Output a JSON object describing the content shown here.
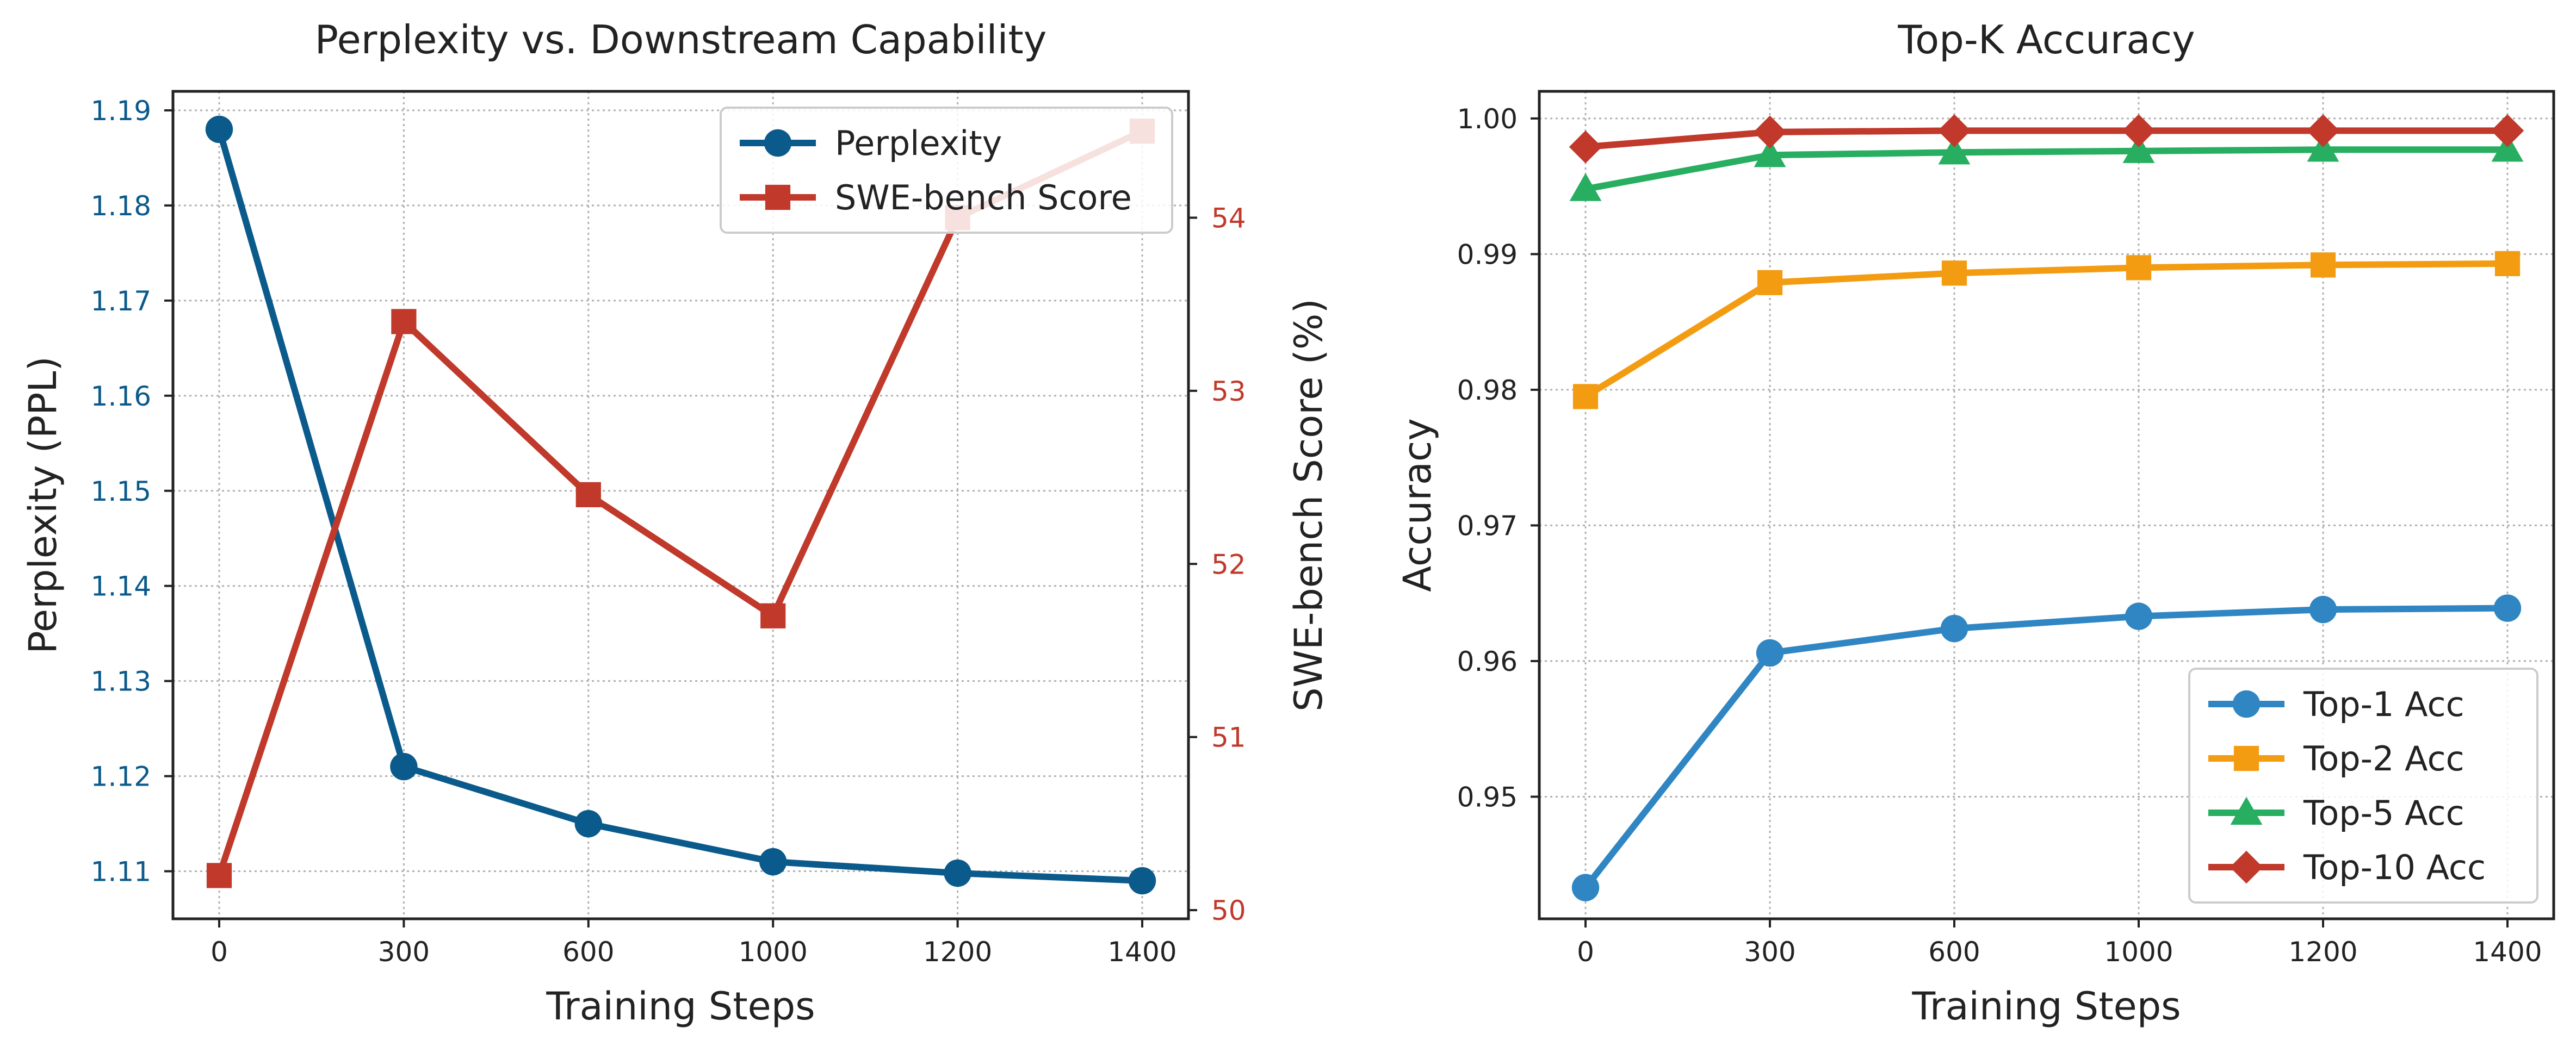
{
  "chart_data": [
    {
      "type": "line",
      "title": "Perplexity vs. Downstream Capability",
      "xlabel": "Training Steps",
      "ylabel": "Perplexity (PPL)",
      "y2label": "SWE-bench Score (%)",
      "categories": [
        "0",
        "300",
        "600",
        "1000",
        "1200",
        "1400"
      ],
      "ylim": [
        1.105,
        1.192
      ],
      "yticks": [
        "1.11",
        "1.12",
        "1.13",
        "1.14",
        "1.15",
        "1.16",
        "1.17",
        "1.18",
        "1.19"
      ],
      "y2lim": [
        49.95,
        54.73
      ],
      "y2ticks": [
        "50",
        "51",
        "52",
        "53",
        "54"
      ],
      "grid": true,
      "legend_position": "top-right",
      "series": [
        {
          "name": "Perplexity",
          "axis": "left",
          "marker": "circle",
          "color": "#0b5a8c",
          "values": [
            1.188,
            1.121,
            1.115,
            1.111,
            1.1098,
            1.109
          ]
        },
        {
          "name": "SWE-bench Score",
          "axis": "right",
          "marker": "square",
          "color": "#c0392b",
          "values": [
            50.2,
            53.4,
            52.4,
            51.7,
            54.0,
            54.5
          ]
        }
      ]
    },
    {
      "type": "line",
      "title": "Top-K Accuracy",
      "xlabel": "Training Steps",
      "ylabel": "Accuracy",
      "categories": [
        "0",
        "300",
        "600",
        "1000",
        "1200",
        "1400"
      ],
      "ylim": [
        0.941,
        1.002
      ],
      "yticks": [
        "0.95",
        "0.96",
        "0.97",
        "0.98",
        "0.99",
        "1.00"
      ],
      "grid": true,
      "legend_position": "bottom-right",
      "series": [
        {
          "name": "Top-1 Acc",
          "marker": "circle",
          "color": "#2f86c2",
          "values": [
            0.9433,
            0.9606,
            0.9624,
            0.9633,
            0.9638,
            0.9639
          ]
        },
        {
          "name": "Top-2 Acc",
          "marker": "square",
          "color": "#f39c12",
          "values": [
            0.9795,
            0.9879,
            0.9886,
            0.989,
            0.9892,
            0.9893
          ]
        },
        {
          "name": "Top-5 Acc",
          "marker": "triangle",
          "color": "#27ae60",
          "values": [
            0.9948,
            0.9973,
            0.9975,
            0.9976,
            0.9977,
            0.9977
          ]
        },
        {
          "name": "Top-10 Acc",
          "marker": "diamond",
          "color": "#c0392b",
          "values": [
            0.9979,
            0.999,
            0.9991,
            0.9991,
            0.9991,
            0.9991
          ]
        }
      ]
    }
  ]
}
